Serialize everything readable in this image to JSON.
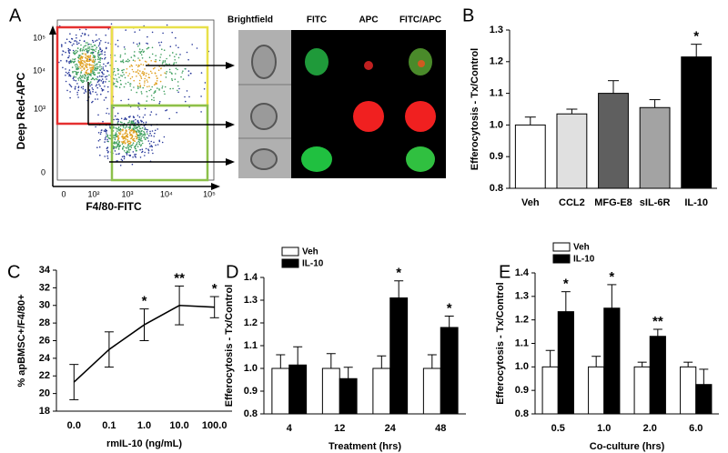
{
  "panel_a": {
    "label": "A",
    "x_label": "F4/80-FITC",
    "y_label": "Deep Red-APC",
    "xticks": [
      "0",
      "10²",
      "10³",
      "10⁴",
      "10⁵"
    ],
    "yticks": [
      "10⁵",
      "10⁴",
      "10³",
      "0"
    ],
    "image_headers": [
      "Brightfield",
      "FITC",
      "APC",
      "FITC/APC"
    ]
  },
  "chart_data": [
    {
      "type": "bar",
      "label": "B",
      "y_label": "Efferocytosis - Tx/Control",
      "categories": [
        "Veh",
        "CCL2",
        "MFG-E8",
        "sIL-6R",
        "IL-10"
      ],
      "values": [
        1.0,
        1.035,
        1.1,
        1.055,
        1.215
      ],
      "errors": [
        0.025,
        0.015,
        0.04,
        0.025,
        0.04
      ],
      "colors": [
        "#ffffff",
        "#e0e0e0",
        "#5f5f5f",
        "#a3a3a3",
        "#000000"
      ],
      "significance": [
        null,
        null,
        null,
        null,
        "*"
      ],
      "ylim": [
        0.8,
        1.3
      ],
      "yticks": [
        0.8,
        0.9,
        {
          "value": 1.0,
          "label": "1.0"
        },
        1.1,
        1.2,
        1.3
      ]
    },
    {
      "type": "line",
      "label": "C",
      "y_label": "% apBMSC+/F4/80+",
      "x_label": "rmIL-10 (ng/mL)",
      "categories": [
        "0.0",
        "0.1",
        "1.0",
        "10.0",
        "100.0"
      ],
      "values": [
        21.3,
        25.0,
        27.8,
        30.0,
        29.8
      ],
      "errors": [
        2.0,
        2.0,
        1.8,
        2.2,
        1.2
      ],
      "significance": [
        null,
        null,
        "*",
        "**",
        "*"
      ],
      "color": "#000000",
      "ylim": [
        18,
        34
      ],
      "yticks": [
        18,
        20,
        22,
        24,
        26,
        28,
        30,
        32,
        34
      ]
    },
    {
      "type": "grouped_bar",
      "label": "D",
      "y_label": "Efferocytosis - Tx/Control",
      "x_label": "Treatment (hrs)",
      "categories": [
        "4",
        "12",
        "24",
        "48"
      ],
      "series": [
        {
          "name": "Veh",
          "color": "#ffffff",
          "values": [
            1.0,
            1.0,
            1.0,
            1.0
          ],
          "errors": [
            0.06,
            0.065,
            0.055,
            0.06
          ],
          "significance": [
            null,
            null,
            null,
            null
          ]
        },
        {
          "name": "IL-10",
          "color": "#000000",
          "values": [
            1.015,
            0.955,
            1.31,
            1.18
          ],
          "errors": [
            0.08,
            0.05,
            0.075,
            0.05
          ],
          "significance": [
            null,
            null,
            "*",
            "*"
          ]
        }
      ],
      "ylim": [
        0.8,
        1.4
      ],
      "yticks": [
        0.8,
        0.9,
        {
          "value": 1.0,
          "label": "1.0"
        },
        1.1,
        1.2,
        1.3,
        1.4
      ]
    },
    {
      "type": "grouped_bar",
      "label": "E",
      "y_label": "Efferocytosis - Tx/Control",
      "x_label": "Co-culture (hrs)",
      "categories": [
        "0.5",
        "1.0",
        "2.0",
        "6.0"
      ],
      "series": [
        {
          "name": "Veh",
          "color": "#ffffff",
          "values": [
            1.0,
            1.0,
            1.0,
            1.0
          ],
          "errors": [
            0.07,
            0.045,
            0.02,
            0.02
          ],
          "significance": [
            null,
            null,
            null,
            null
          ]
        },
        {
          "name": "IL-10",
          "color": "#000000",
          "values": [
            1.235,
            1.25,
            1.13,
            0.925
          ],
          "errors": [
            0.085,
            0.1,
            0.03,
            0.065
          ],
          "significance": [
            "*",
            "*",
            "**",
            null
          ]
        }
      ],
      "ylim": [
        0.8,
        1.4
      ],
      "yticks": [
        0.8,
        0.9,
        {
          "value": 1.0,
          "label": "1.0"
        },
        1.1,
        1.2,
        1.3,
        1.4
      ]
    }
  ]
}
